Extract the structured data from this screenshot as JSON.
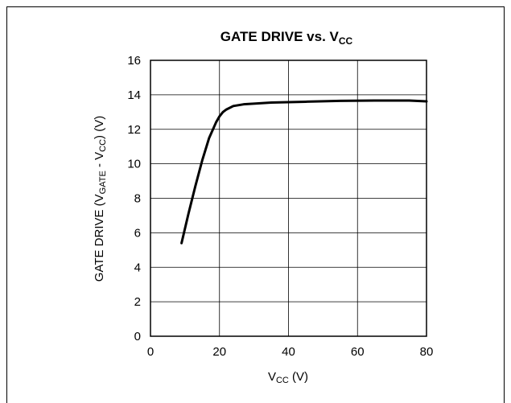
{
  "chart_data": {
    "type": "line",
    "title": {
      "main": "GATE DRIVE vs. V",
      "sub": "CC"
    },
    "xlabel": {
      "pre": "V",
      "sub": "CC",
      "post": " (V)"
    },
    "ylabel": {
      "pre": "GATE DRIVE (V",
      "sub1": "GATE",
      "mid": " - V",
      "sub2": "CC",
      "post": ") (V)"
    },
    "xlim": [
      0,
      80
    ],
    "ylim": [
      0,
      16
    ],
    "xticks": [
      "0",
      "20",
      "40",
      "60",
      "80"
    ],
    "yticks": [
      "0",
      "2",
      "4",
      "6",
      "8",
      "10",
      "12",
      "14",
      "16"
    ],
    "grid": true,
    "series": [
      {
        "x": [
          9,
          11,
          13,
          15,
          17,
          19,
          20,
          21,
          22,
          24,
          27,
          35,
          45,
          55,
          65,
          75,
          80
        ],
        "y": [
          5.4,
          7.1,
          8.7,
          10.2,
          11.5,
          12.4,
          12.75,
          13.0,
          13.15,
          13.35,
          13.45,
          13.55,
          13.6,
          13.65,
          13.67,
          13.67,
          13.62
        ]
      }
    ]
  }
}
